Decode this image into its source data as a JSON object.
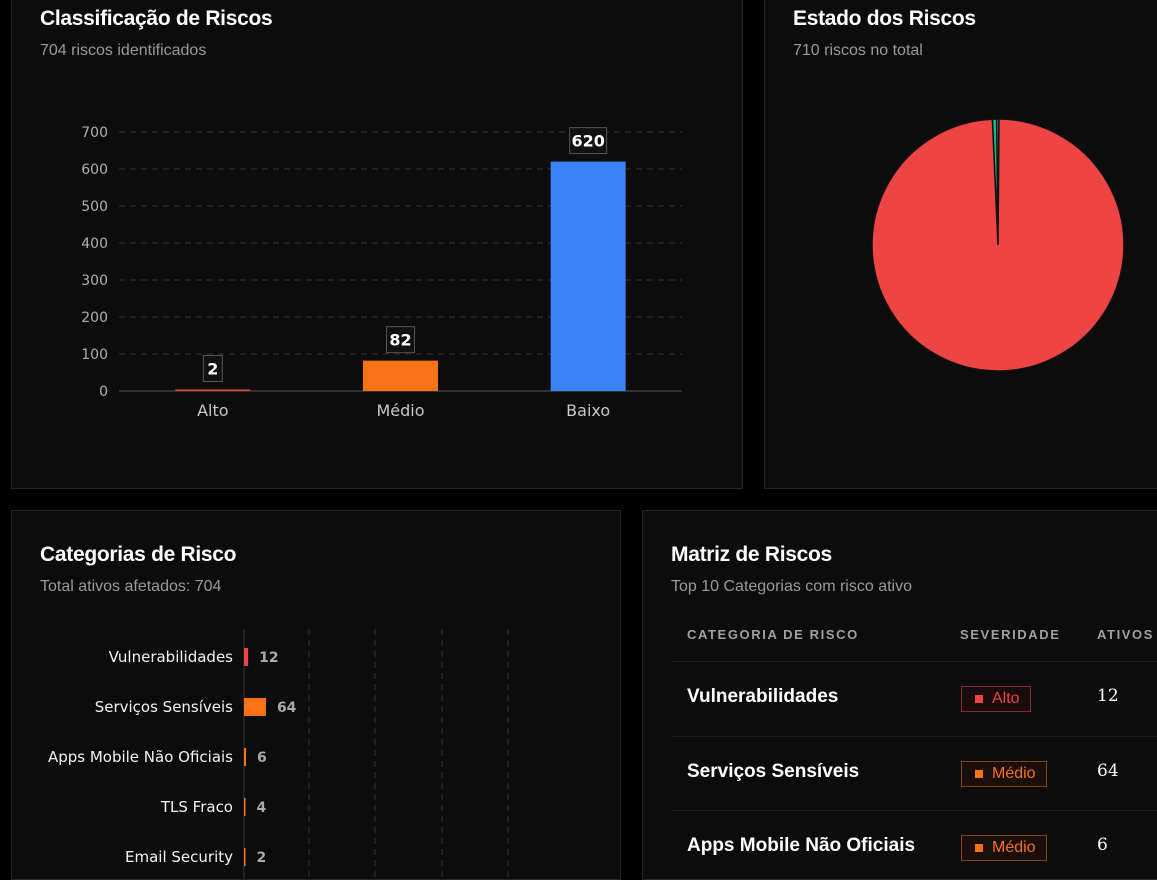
{
  "classification": {
    "title": "Classificação de Riscos",
    "subtitle": "704 riscos identificados",
    "chart_data": {
      "type": "bar",
      "categories": [
        "Alto",
        "Médio",
        "Baixo"
      ],
      "values": [
        2,
        82,
        620
      ],
      "data_labels": [
        "2",
        "82",
        "620"
      ],
      "colors": [
        "#ef4444",
        "#f97316",
        "#3b82f6"
      ],
      "ylim": [
        0,
        700
      ],
      "yticks": [
        "0",
        "100",
        "200",
        "300",
        "400",
        "500",
        "600",
        "700"
      ],
      "grid": true
    }
  },
  "state": {
    "title": "Estado dos Riscos",
    "subtitle": "710 riscos no total",
    "chart_data": {
      "type": "pie",
      "values": [
        704,
        4,
        2
      ],
      "colors": [
        "#ef4444",
        "#10b981",
        "#94a3b8"
      ]
    }
  },
  "categories": {
    "title": "Categorias de Risco",
    "subtitle": "Total ativos afetados: 704",
    "chart_data": {
      "type": "bar",
      "orientation": "horizontal",
      "categories": [
        "Vulnerabilidades",
        "Serviços Sensíveis",
        "Apps Mobile Não Oficiais",
        "TLS Fraco",
        "Email Security"
      ],
      "values": [
        12,
        64,
        6,
        4,
        2
      ],
      "data_labels": [
        "12",
        "64",
        "6",
        "4",
        "2"
      ],
      "colors": [
        "#ef4444",
        "#f97316",
        "#f97316",
        "#f97316",
        "#f97316"
      ],
      "grid": true
    }
  },
  "matrix": {
    "title": "Matriz de Riscos",
    "subtitle": "Top 10 Categorias com risco ativo",
    "columns": [
      "CATEGORIA DE RISCO",
      "SEVERIDADE",
      "ATIVOS"
    ],
    "rows": [
      {
        "category": "Vulnerabilidades",
        "severity": "Alto",
        "level": "high",
        "assets": "12"
      },
      {
        "category": "Serviços Sensíveis",
        "severity": "Médio",
        "level": "med",
        "assets": "64"
      },
      {
        "category": "Apps Mobile Não Oficiais",
        "severity": "Médio",
        "level": "med",
        "assets": "6"
      }
    ]
  }
}
